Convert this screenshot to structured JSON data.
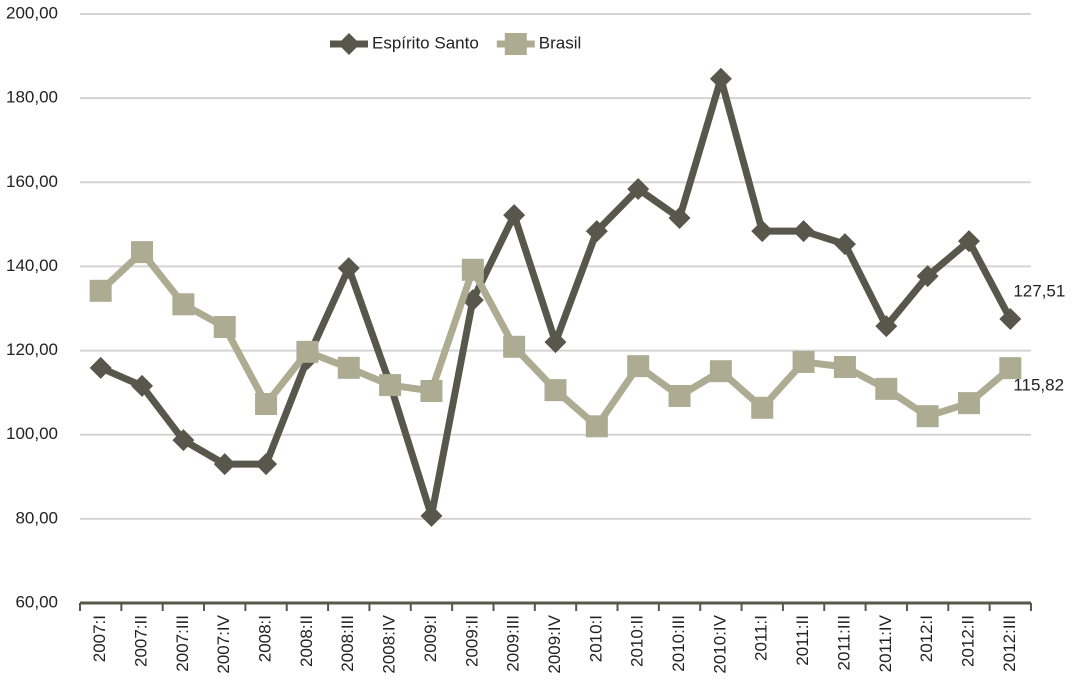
{
  "chart_data": {
    "type": "line",
    "categories": [
      "2007:I",
      "2007:II",
      "2007:III",
      "2007:IV",
      "2008:I",
      "2008:II",
      "2008:III",
      "2008:IV",
      "2009:I",
      "2009:II",
      "2009:III",
      "2009:IV",
      "2010:I",
      "2010:II",
      "2010:III",
      "2010:IV",
      "2011:I",
      "2011:II",
      "2011:III",
      "2011:IV",
      "2012:I",
      "2012:II",
      "2012:III"
    ],
    "series": [
      {
        "name": "Espírito Santo",
        "color": "#58574b",
        "marker": "diamond",
        "values": [
          115.9,
          111.6,
          98.7,
          93,
          93,
          118,
          139.6,
          112,
          80.7,
          132,
          152.2,
          122,
          148.4,
          158.4,
          151.5,
          184.6,
          148.4,
          148.4,
          145.3,
          125.8,
          137.7,
          146,
          127.51
        ],
        "value_labels": [
          null,
          null,
          null,
          null,
          null,
          null,
          null,
          null,
          null,
          null,
          null,
          null,
          null,
          null,
          null,
          null,
          null,
          null,
          null,
          null,
          null,
          null,
          "127,51"
        ]
      },
      {
        "name": "Brasil",
        "color": "#aeab93",
        "marker": "square",
        "values": [
          134.2,
          143.4,
          131,
          125.6,
          107.3,
          119.7,
          115.9,
          111.8,
          110.4,
          139.2,
          120.9,
          110.6,
          102,
          116.3,
          109.2,
          115.1,
          106.4,
          117.3,
          116.1,
          110.9,
          104.4,
          107.5,
          115.82
        ],
        "value_labels": [
          null,
          null,
          null,
          null,
          null,
          null,
          null,
          null,
          null,
          null,
          null,
          null,
          null,
          null,
          null,
          null,
          null,
          null,
          null,
          null,
          null,
          null,
          "115,82"
        ]
      }
    ],
    "ylim": [
      60,
      200
    ],
    "yticks": [
      {
        "value": 60,
        "label": "60,00"
      },
      {
        "value": 80,
        "label": "80,00"
      },
      {
        "value": 100,
        "label": "100,00"
      },
      {
        "value": 120,
        "label": "120,00"
      },
      {
        "value": 140,
        "label": "140,00"
      },
      {
        "value": 160,
        "label": "160,00"
      },
      {
        "value": 180,
        "label": "180,00"
      },
      {
        "value": 200,
        "label": "200,00"
      }
    ],
    "grid": true,
    "legend": "top"
  }
}
